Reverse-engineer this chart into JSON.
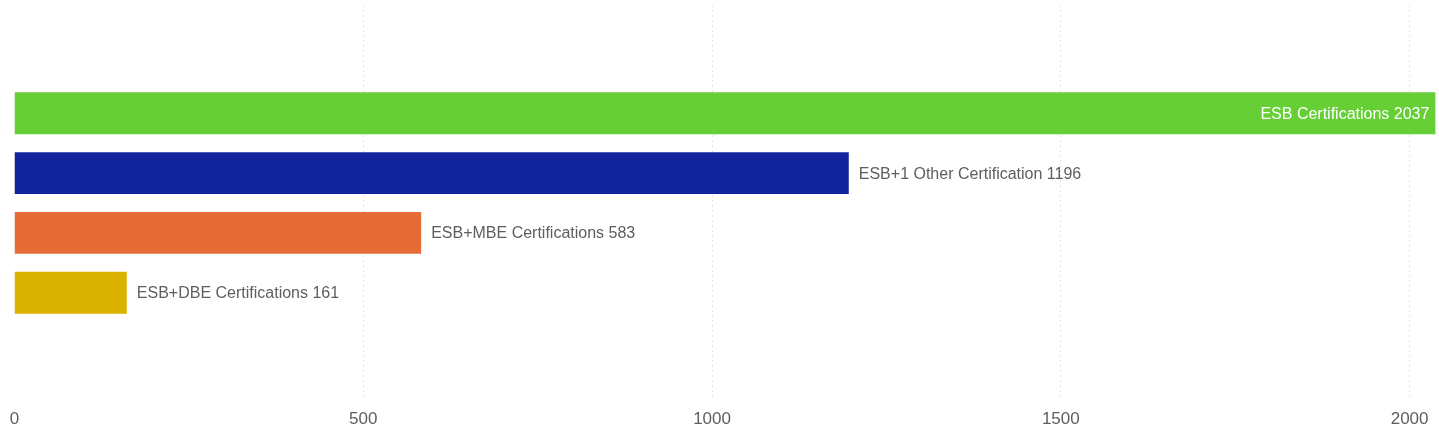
{
  "chart_data": {
    "type": "bar",
    "orientation": "horizontal",
    "categories": [
      null,
      null,
      null,
      null
    ],
    "values": [
      2037,
      1196,
      583,
      161
    ],
    "value_labels": [
      "ESB Certifications 2037",
      "ESB+1 Other Certification 1196",
      "ESB+MBE Certifications 583",
      "ESB+DBE Certifications 161"
    ],
    "colors": [
      "#66cf36",
      "#12239e",
      "#e66c37",
      "#d9b300"
    ],
    "xlim": [
      0,
      2040
    ],
    "xticks": [
      0,
      500,
      1000,
      1500,
      2000
    ],
    "grid": "x",
    "tick_labels": "x"
  }
}
